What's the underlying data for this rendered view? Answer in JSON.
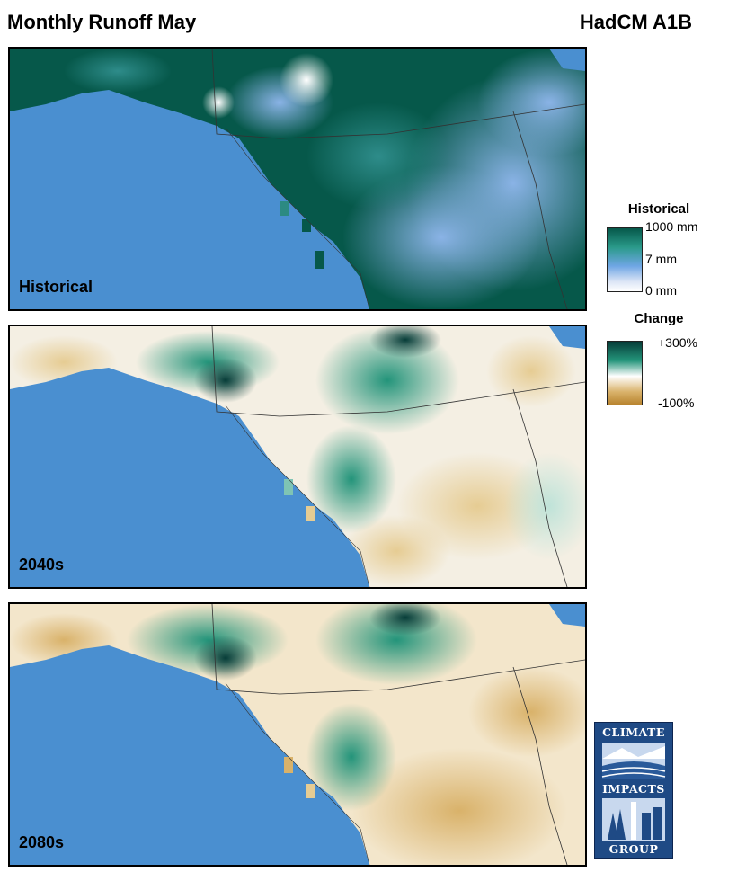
{
  "header": {
    "title": "Monthly Runoff May",
    "model": "HadCM A1B"
  },
  "panels": [
    {
      "label": "Historical",
      "scheme": "historical"
    },
    {
      "label": "2040s",
      "scheme": "change"
    },
    {
      "label": "2080s",
      "scheme": "change"
    }
  ],
  "legend": {
    "historical": {
      "title": "Historical",
      "ticks": [
        "1000 mm",
        "7 mm",
        "0 mm"
      ],
      "colors": [
        "#06584a",
        "#2a9a8a",
        "#6fa6e4",
        "#ffffff"
      ]
    },
    "change": {
      "title": "Change",
      "ticks": [
        "+300%",
        "-100%"
      ],
      "colors": [
        "#063c38",
        "#23947a",
        "#ffffff",
        "#d9b26a",
        "#b8842f"
      ]
    }
  },
  "colors": {
    "ocean": "#4a8fd0",
    "border": "#333333"
  },
  "logo": {
    "line1": "CLIMATE",
    "line2": "IMPACTS",
    "line3": "GROUP"
  }
}
